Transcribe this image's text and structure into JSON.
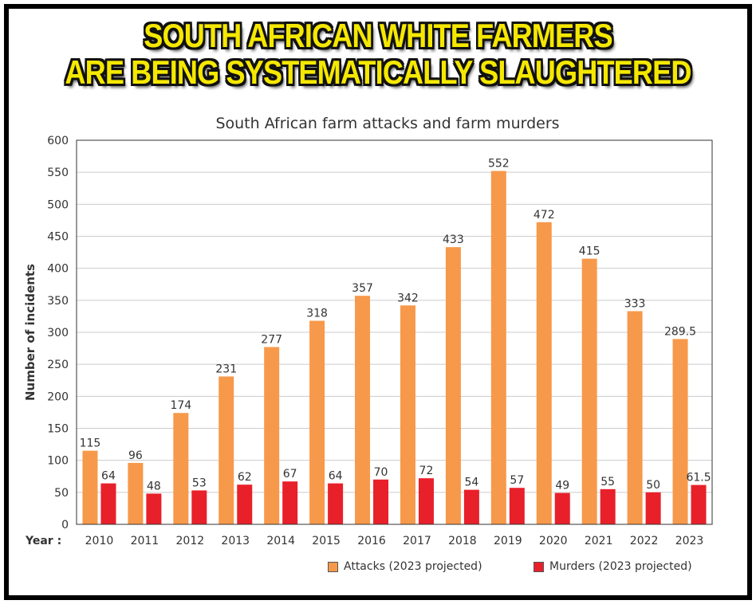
{
  "banner": {
    "line1": "SOUTH AFRICAN WHITE FARMERS",
    "line2": "ARE BEING SYSTEMATICALLY SLAUGHTERED"
  },
  "chart_data": {
    "type": "bar",
    "title": "South African farm attacks and farm murders",
    "xlabel": "Year :",
    "ylabel": "Number of incidents",
    "ylim": [
      0,
      600
    ],
    "yticks": [
      0,
      50,
      100,
      150,
      200,
      250,
      300,
      350,
      400,
      450,
      500,
      550,
      600
    ],
    "grid": true,
    "legend_position": "bottom-right",
    "categories": [
      "2010",
      "2011",
      "2012",
      "2013",
      "2014",
      "2015",
      "2016",
      "2017",
      "2018",
      "2019",
      "2020",
      "2021",
      "2022",
      "2023"
    ],
    "series": [
      {
        "name": "Attacks (2023 projected)",
        "color": "#f7994a",
        "values": [
          115,
          96,
          174,
          231,
          277,
          318,
          357,
          342,
          433,
          552,
          472,
          415,
          333,
          289.5
        ]
      },
      {
        "name": "Murders (2023 projected)",
        "color": "#e8202a",
        "values": [
          64,
          48,
          53,
          62,
          67,
          64,
          70,
          72,
          54,
          57,
          49,
          55,
          50,
          61.5
        ]
      }
    ]
  }
}
